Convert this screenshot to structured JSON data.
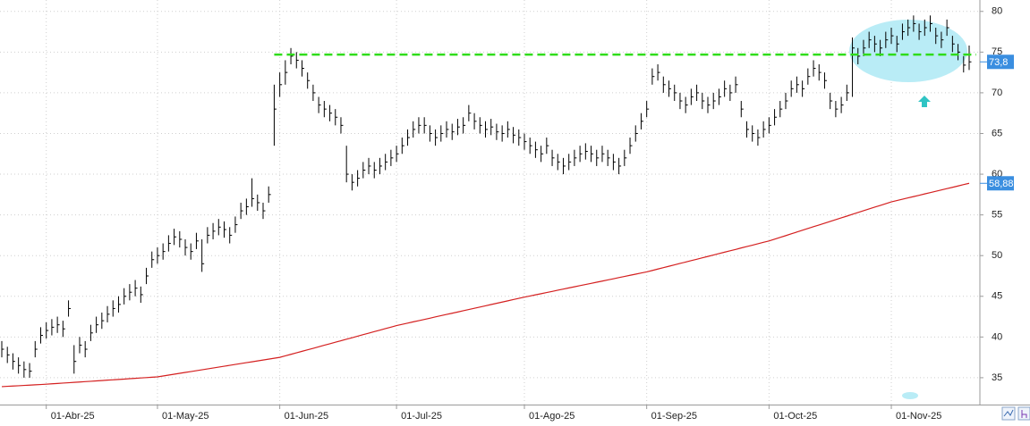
{
  "chart_data": {
    "type": "ohlc",
    "color": "#000000",
    "categories": [
      null,
      null,
      null,
      null,
      null,
      null,
      null,
      null,
      "01-Abr-25",
      null,
      null,
      null,
      null,
      null,
      null,
      null,
      null,
      null,
      null,
      null,
      null,
      null,
      null,
      null,
      null,
      null,
      null,
      null,
      "01-May-25",
      null,
      null,
      null,
      null,
      null,
      null,
      null,
      null,
      null,
      null,
      null,
      null,
      null,
      null,
      null,
      null,
      null,
      null,
      null,
      null,
      null,
      "01-Jun-25",
      null,
      null,
      null,
      null,
      null,
      null,
      null,
      null,
      null,
      null,
      null,
      null,
      null,
      null,
      null,
      null,
      null,
      null,
      null,
      null,
      "01-Jul-25",
      null,
      null,
      null,
      null,
      null,
      null,
      null,
      null,
      null,
      null,
      null,
      null,
      null,
      null,
      null,
      null,
      null,
      null,
      null,
      null,
      null,
      null,
      "01-Ago-25",
      null,
      null,
      null,
      null,
      null,
      null,
      null,
      null,
      null,
      null,
      null,
      null,
      null,
      null,
      null,
      null,
      null,
      null,
      null,
      null,
      null,
      "01-Sep-25",
      null,
      null,
      null,
      null,
      null,
      null,
      null,
      null,
      null,
      null,
      null,
      null,
      null,
      null,
      null,
      null,
      null,
      null,
      null,
      null,
      null,
      "01-Oct-25",
      null,
      null,
      null,
      null,
      null,
      null,
      null,
      null,
      null,
      null,
      null,
      null,
      null,
      null,
      null,
      null,
      null,
      null,
      null,
      null,
      null,
      "01-Nov-25",
      null,
      null,
      null,
      null,
      null,
      null,
      null,
      null,
      null,
      null,
      null,
      null,
      null,
      null
    ],
    "high": [
      39.5,
      38.8,
      38.0,
      37.5,
      37.0,
      36.8,
      39.5,
      41.2,
      41.8,
      42.2,
      42.5,
      42.0,
      44.5,
      39.0,
      40.0,
      39.5,
      41.5,
      42.5,
      43.0,
      43.8,
      44.5,
      45.0,
      46.0,
      46.5,
      47.0,
      46.2,
      48.5,
      50.5,
      51.0,
      51.5,
      52.5,
      53.3,
      53.0,
      52.0,
      51.5,
      52.8,
      52.0,
      53.5,
      54.0,
      54.5,
      54.2,
      53.5,
      54.8,
      56.5,
      57.0,
      59.5,
      57.5,
      56.5,
      58.5,
      71.0,
      72.5,
      74.0,
      75.5,
      75.0,
      74.0,
      72.5,
      71.0,
      69.5,
      69.0,
      68.5,
      68.0,
      67.0,
      63.5,
      60.0,
      60.5,
      61.5,
      62.0,
      61.5,
      62.0,
      62.5,
      63.0,
      63.5,
      64.5,
      65.5,
      66.5,
      67.0,
      67.0,
      66.0,
      65.5,
      66.0,
      66.5,
      66.2,
      66.8,
      67.0,
      68.5,
      67.5,
      67.0,
      66.5,
      66.8,
      66.2,
      66.0,
      66.5,
      65.8,
      65.5,
      65.0,
      64.5,
      64.0,
      63.5,
      64.5,
      63.0,
      62.5,
      62.0,
      62.5,
      63.0,
      63.5,
      63.8,
      63.5,
      63.0,
      63.5,
      63.0,
      62.5,
      62.0,
      63.0,
      64.5,
      66.0,
      67.5,
      69.0,
      73.0,
      73.5,
      72.0,
      71.5,
      71.0,
      70.0,
      69.5,
      70.5,
      71.0,
      70.0,
      69.5,
      70.0,
      70.5,
      71.5,
      71.0,
      72.0,
      69.0,
      66.5,
      66.0,
      65.5,
      66.5,
      67.0,
      68.0,
      69.0,
      70.0,
      71.5,
      72.0,
      71.5,
      73.0,
      74.0,
      73.5,
      72.5,
      70.0,
      69.0,
      69.5,
      71.0,
      76.8,
      75.5,
      76.5,
      77.5,
      77.0,
      76.5,
      77.5,
      78.0,
      77.0,
      78.5,
      79.0,
      79.5,
      78.5,
      79.0,
      79.5,
      78.0,
      77.5,
      79.0,
      77.0,
      76.0,
      74.5,
      75.8
    ],
    "low": [
      37.5,
      36.8,
      36.0,
      35.5,
      35.0,
      35.0,
      37.5,
      39.2,
      39.8,
      40.2,
      40.5,
      40.0,
      42.5,
      35.5,
      38.0,
      37.5,
      39.5,
      40.5,
      41.0,
      41.8,
      42.5,
      43.0,
      44.0,
      44.5,
      45.0,
      44.2,
      46.5,
      48.5,
      49.0,
      49.5,
      50.5,
      51.3,
      51.0,
      50.0,
      49.5,
      50.8,
      48.0,
      51.5,
      52.0,
      52.5,
      52.2,
      51.5,
      52.8,
      54.5,
      55.0,
      56.0,
      55.5,
      54.5,
      56.5,
      63.5,
      69.5,
      71.0,
      73.5,
      73.0,
      72.0,
      70.5,
      69.0,
      67.5,
      67.0,
      66.5,
      66.0,
      65.0,
      59.0,
      58.0,
      58.5,
      59.5,
      60.0,
      59.5,
      60.0,
      60.5,
      61.0,
      61.5,
      62.5,
      63.5,
      64.5,
      65.0,
      65.0,
      64.0,
      63.5,
      64.0,
      64.5,
      64.2,
      64.8,
      65.0,
      66.5,
      65.5,
      65.0,
      64.5,
      64.8,
      64.2,
      64.0,
      64.5,
      63.8,
      63.5,
      63.0,
      62.5,
      62.0,
      61.5,
      62.5,
      61.0,
      60.5,
      60.0,
      60.5,
      61.0,
      61.5,
      61.8,
      61.5,
      61.0,
      61.5,
      61.0,
      60.5,
      60.0,
      61.0,
      62.5,
      64.0,
      65.5,
      67.0,
      71.0,
      71.5,
      70.0,
      69.5,
      69.0,
      68.0,
      67.5,
      68.5,
      69.0,
      68.0,
      67.5,
      68.0,
      68.5,
      69.5,
      69.0,
      70.0,
      67.0,
      64.5,
      64.0,
      63.5,
      64.5,
      65.0,
      66.0,
      67.0,
      68.0,
      69.5,
      70.0,
      69.5,
      71.0,
      72.0,
      71.5,
      70.5,
      68.0,
      67.0,
      67.5,
      69.0,
      69.5,
      73.5,
      74.5,
      75.5,
      75.0,
      74.5,
      75.5,
      76.0,
      75.0,
      76.5,
      77.0,
      77.5,
      76.5,
      77.0,
      77.5,
      76.0,
      75.5,
      77.0,
      75.0,
      74.0,
      72.5,
      72.8
    ],
    "close": [
      38.5,
      37.8,
      37.0,
      36.5,
      36.0,
      35.8,
      38.5,
      40.2,
      40.8,
      41.2,
      41.5,
      41.0,
      43.5,
      37.0,
      39.0,
      38.5,
      40.5,
      41.5,
      42.0,
      42.8,
      43.5,
      44.0,
      45.0,
      45.5,
      46.0,
      45.2,
      47.5,
      49.5,
      50.0,
      50.5,
      51.5,
      52.3,
      52.0,
      51.0,
      50.5,
      51.8,
      49.0,
      52.5,
      53.0,
      53.5,
      53.2,
      52.5,
      53.8,
      55.5,
      56.0,
      57.0,
      56.5,
      55.5,
      57.5,
      68.0,
      71.0,
      72.5,
      74.5,
      74.0,
      73.0,
      71.5,
      70.0,
      68.5,
      68.0,
      67.5,
      67.0,
      66.0,
      60.0,
      59.0,
      59.5,
      60.5,
      61.0,
      60.5,
      61.0,
      61.5,
      62.0,
      62.5,
      63.5,
      64.5,
      65.5,
      66.0,
      66.0,
      65.0,
      64.5,
      65.0,
      65.5,
      65.2,
      65.8,
      66.0,
      67.5,
      66.5,
      66.0,
      65.5,
      65.8,
      65.2,
      65.0,
      65.5,
      64.8,
      64.5,
      64.0,
      63.5,
      63.0,
      62.5,
      63.5,
      62.0,
      61.5,
      61.0,
      61.5,
      62.0,
      62.5,
      62.8,
      62.5,
      62.0,
      62.5,
      62.0,
      61.5,
      61.0,
      62.0,
      63.5,
      65.0,
      66.5,
      68.0,
      72.0,
      72.5,
      71.0,
      70.5,
      70.0,
      69.0,
      68.5,
      69.5,
      70.0,
      69.0,
      68.5,
      69.0,
      69.5,
      70.5,
      70.0,
      71.0,
      68.0,
      65.5,
      65.0,
      64.5,
      65.5,
      66.0,
      67.0,
      68.0,
      69.0,
      70.5,
      71.0,
      70.5,
      72.0,
      73.0,
      72.5,
      71.5,
      69.0,
      68.0,
      68.5,
      70.0,
      75.5,
      74.5,
      75.5,
      76.5,
      76.0,
      75.5,
      76.5,
      77.0,
      76.0,
      77.5,
      78.0,
      78.5,
      77.5,
      78.0,
      78.5,
      77.0,
      76.5,
      78.0,
      76.0,
      75.0,
      73.4,
      73.8
    ],
    "close_label": "73,8",
    "overlay": {
      "type": "line",
      "color": "#d42020",
      "values": [
        33.9,
        33.94,
        33.98,
        34.01,
        34.05,
        34.09,
        34.13,
        34.16,
        34.2,
        34.25,
        34.29,
        34.34,
        34.38,
        34.43,
        34.47,
        34.52,
        34.56,
        34.61,
        34.65,
        34.7,
        34.74,
        34.79,
        34.83,
        34.88,
        34.92,
        34.97,
        35.01,
        35.06,
        35.1,
        35.21,
        35.32,
        35.43,
        35.54,
        35.65,
        35.75,
        35.86,
        35.97,
        36.08,
        36.19,
        36.3,
        36.41,
        36.52,
        36.63,
        36.74,
        36.85,
        36.95,
        37.06,
        37.17,
        37.28,
        37.39,
        37.5,
        37.69,
        37.87,
        38.06,
        38.24,
        38.43,
        38.61,
        38.8,
        38.99,
        39.17,
        39.36,
        39.54,
        39.73,
        39.91,
        40.1,
        40.29,
        40.47,
        40.66,
        40.84,
        41.03,
        41.21,
        41.4,
        41.55,
        41.7,
        41.86,
        42.01,
        42.16,
        42.31,
        42.47,
        42.62,
        42.77,
        42.92,
        43.07,
        43.23,
        43.38,
        43.53,
        43.68,
        43.83,
        43.99,
        44.14,
        44.29,
        44.44,
        44.6,
        44.75,
        44.9,
        45.04,
        45.18,
        45.32,
        45.46,
        45.6,
        45.75,
        45.89,
        46.03,
        46.17,
        46.31,
        46.45,
        46.59,
        46.73,
        46.87,
        47.01,
        47.15,
        47.3,
        47.44,
        47.58,
        47.72,
        47.86,
        48.0,
        48.17,
        48.35,
        48.52,
        48.69,
        48.86,
        49.04,
        49.21,
        49.38,
        49.55,
        49.73,
        49.9,
        50.07,
        50.25,
        50.42,
        50.59,
        50.76,
        50.94,
        51.11,
        51.28,
        51.45,
        51.63,
        51.8,
        52.02,
        52.24,
        52.45,
        52.67,
        52.89,
        53.11,
        53.33,
        53.55,
        53.76,
        53.98,
        54.2,
        54.42,
        54.64,
        54.85,
        55.07,
        55.29,
        55.51,
        55.73,
        55.95,
        56.16,
        56.38,
        56.6,
        56.76,
        56.93,
        57.09,
        57.25,
        57.41,
        57.58,
        57.74,
        57.9,
        58.07,
        58.23,
        58.39,
        58.55,
        58.72,
        58.88
      ],
      "last_label": "58,88"
    },
    "hline": {
      "value": 74.7,
      "color": "#2fdc1a"
    },
    "label_color": "#3a8ee0",
    "ylim": [
      31.7,
      81.4
    ],
    "yticks": [
      35,
      40,
      45,
      50,
      55,
      60,
      65,
      70,
      75,
      80
    ],
    "grid": true
  }
}
